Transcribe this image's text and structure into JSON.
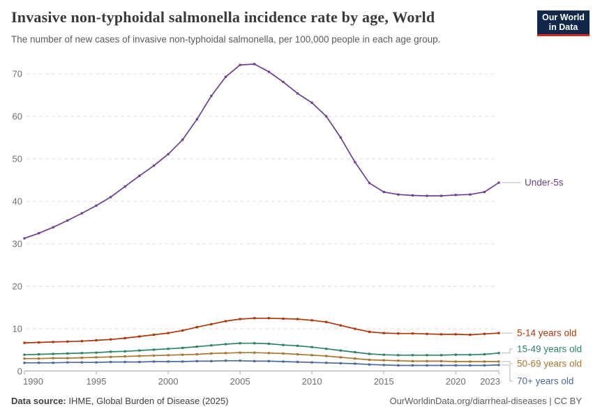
{
  "header": {
    "logo": {
      "line1": "Our World",
      "line2": "in Data",
      "bg_color": "#12284A",
      "accent_color": "#CE2D23"
    }
  },
  "chart_data": {
    "type": "line",
    "title": "Invasive non-typhoidal salmonella incidence rate by age, World",
    "subtitle": "The number of new cases of invasive non-typhoidal salmonella, per 100,000 people in each age group.",
    "xlabel": "",
    "ylabel": "",
    "x_years": [
      1990,
      1991,
      1992,
      1993,
      1994,
      1995,
      1996,
      1997,
      1998,
      1999,
      2000,
      2001,
      2002,
      2003,
      2004,
      2005,
      2006,
      2007,
      2008,
      2009,
      2010,
      2011,
      2012,
      2013,
      2014,
      2015,
      2016,
      2017,
      2018,
      2019,
      2020,
      2021,
      2022,
      2023
    ],
    "xticks": [
      1990,
      1995,
      2000,
      2005,
      2010,
      2015,
      2020,
      2023
    ],
    "yticks": [
      0,
      10,
      20,
      30,
      40,
      50,
      60,
      70
    ],
    "ylim": [
      0,
      75
    ],
    "grid": "horizontal-dashed",
    "legend_position": "right-of-line-ends",
    "grid_color": "#dcdcdc",
    "axis_color": "#a8a8a8",
    "tick_label_color": "#6e6e6e",
    "connector_color": "#b6b6b6",
    "series": [
      {
        "name": "Under-5s",
        "color": "#6D3E91",
        "values": [
          31.3,
          32.5,
          33.9,
          35.5,
          37.2,
          39.0,
          41.0,
          43.5,
          46.0,
          48.4,
          51.1,
          54.5,
          59.3,
          64.8,
          69.3,
          72.1,
          72.3,
          70.5,
          68.1,
          65.4,
          63.2,
          60.0,
          55.0,
          49.2,
          44.3,
          42.2,
          41.6,
          41.4,
          41.3,
          41.3,
          41.5,
          41.6,
          42.2,
          44.4
        ]
      },
      {
        "name": "5-14 years old",
        "color": "#B13507",
        "values": [
          6.7,
          6.8,
          6.9,
          7.0,
          7.1,
          7.3,
          7.5,
          7.8,
          8.2,
          8.6,
          9.0,
          9.6,
          10.4,
          11.1,
          11.8,
          12.3,
          12.5,
          12.5,
          12.4,
          12.3,
          12.0,
          11.6,
          10.8,
          10.0,
          9.3,
          9.0,
          8.9,
          8.9,
          8.8,
          8.7,
          8.7,
          8.6,
          8.8,
          9.0
        ]
      },
      {
        "name": "15-49 years old",
        "color": "#2C8465",
        "values": [
          3.9,
          4.0,
          4.1,
          4.2,
          4.3,
          4.4,
          4.6,
          4.7,
          4.9,
          5.1,
          5.3,
          5.5,
          5.8,
          6.1,
          6.4,
          6.6,
          6.6,
          6.5,
          6.2,
          6.0,
          5.7,
          5.3,
          4.9,
          4.5,
          4.1,
          3.9,
          3.8,
          3.8,
          3.8,
          3.8,
          3.9,
          3.9,
          4.0,
          4.3
        ]
      },
      {
        "name": "50-69 years old",
        "color": "#A9772F",
        "values": [
          3.0,
          3.0,
          3.1,
          3.1,
          3.2,
          3.3,
          3.4,
          3.5,
          3.6,
          3.7,
          3.8,
          3.9,
          4.0,
          4.2,
          4.3,
          4.4,
          4.4,
          4.3,
          4.2,
          4.0,
          3.8,
          3.6,
          3.3,
          3.0,
          2.7,
          2.6,
          2.5,
          2.4,
          2.4,
          2.4,
          2.3,
          2.3,
          2.3,
          2.3
        ]
      },
      {
        "name": "70+ years old",
        "color": "#4C6A9C",
        "values": [
          2.0,
          2.0,
          2.0,
          2.1,
          2.1,
          2.1,
          2.2,
          2.2,
          2.2,
          2.3,
          2.3,
          2.3,
          2.4,
          2.4,
          2.5,
          2.5,
          2.4,
          2.4,
          2.3,
          2.2,
          2.1,
          2.0,
          1.9,
          1.8,
          1.6,
          1.5,
          1.4,
          1.4,
          1.4,
          1.4,
          1.4,
          1.4,
          1.4,
          1.5
        ]
      }
    ]
  },
  "footer": {
    "source_label": "Data source:",
    "source_value": "IHME, Global Burden of Disease (2025)",
    "credit": "OurWorldinData.org/diarrheal-diseases | CC BY"
  }
}
